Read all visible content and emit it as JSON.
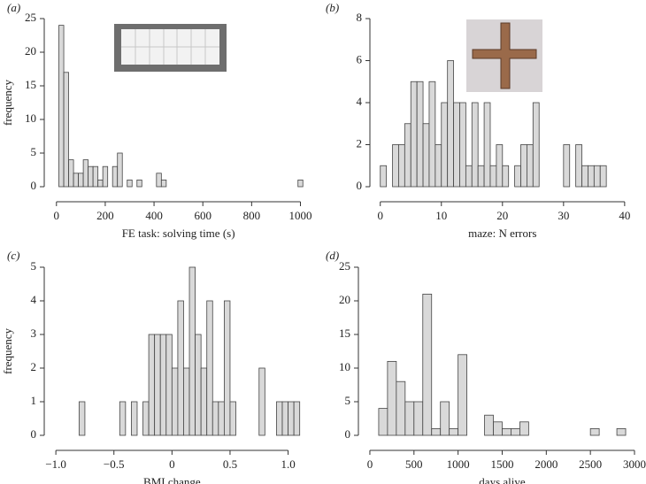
{
  "chart_data": [
    {
      "type": "histogram",
      "panel_label": "(a)",
      "xlabel": "FE task: solving time (s)",
      "ylabel": "frequency",
      "color": "#d9d9d9",
      "bins": [
        10,
        30,
        50,
        70,
        90,
        110,
        130,
        150,
        170,
        190,
        210,
        230,
        250,
        270,
        290,
        310,
        330,
        350,
        370,
        390,
        410,
        430,
        450,
        470,
        490,
        510,
        530,
        550,
        570,
        590,
        610,
        630,
        650,
        670,
        690,
        710,
        730,
        750,
        770,
        790,
        810,
        830,
        850,
        870,
        890,
        910,
        930,
        950,
        970,
        990,
        1010
      ],
      "counts": [
        24,
        17,
        4,
        2,
        2,
        4,
        3,
        3,
        1,
        3,
        0,
        3,
        5,
        0,
        1,
        0,
        1,
        0,
        0,
        0,
        2,
        1,
        0,
        0,
        0,
        0,
        0,
        0,
        0,
        0,
        0,
        0,
        0,
        0,
        0,
        0,
        0,
        0,
        0,
        0,
        0,
        0,
        0,
        0,
        0,
        0,
        0,
        0,
        0,
        1
      ],
      "xlim": [
        -50,
        1020
      ],
      "ylim": [
        0,
        25
      ],
      "xticks": [
        0,
        200,
        400,
        600,
        800,
        1000
      ],
      "yticks": [
        0,
        5,
        10,
        15,
        20,
        25
      ]
    },
    {
      "type": "histogram",
      "panel_label": "(b)",
      "xlabel": "maze: N errors",
      "color": "#d9d9d9",
      "bins": [
        0,
        1,
        2,
        3,
        4,
        5,
        6,
        7,
        8,
        9,
        10,
        11,
        12,
        13,
        14,
        15,
        16,
        17,
        18,
        19,
        20,
        21,
        22,
        23,
        24,
        25,
        26,
        27,
        28,
        29,
        30,
        31,
        32,
        33,
        34,
        35,
        36,
        37
      ],
      "counts": [
        1,
        0,
        2,
        2,
        3,
        5,
        5,
        3,
        5,
        2,
        4,
        6,
        4,
        4,
        1,
        4,
        1,
        4,
        1,
        2,
        1,
        0,
        1,
        2,
        2,
        4,
        0,
        0,
        0,
        0,
        2,
        0,
        2,
        1,
        1,
        1,
        1
      ],
      "xlim": [
        -1.7,
        40.6
      ],
      "ylim": [
        0,
        8
      ],
      "xticks": [
        0,
        10,
        20,
        30,
        40
      ],
      "yticks": [
        0,
        2,
        4,
        6,
        8
      ]
    },
    {
      "type": "histogram",
      "panel_label": "(c)",
      "xlabel": "BMI change",
      "ylabel": "frequency",
      "color": "#d9d9d9",
      "bins": [
        -0.8,
        -0.75,
        -0.7,
        -0.65,
        -0.6,
        -0.55,
        -0.5,
        -0.45,
        -0.4,
        -0.35,
        -0.3,
        -0.25,
        -0.2,
        -0.15,
        -0.1,
        -0.05,
        0,
        0.05,
        0.1,
        0.15,
        0.2,
        0.25,
        0.3,
        0.35,
        0.4,
        0.45,
        0.5,
        0.55,
        0.6,
        0.65,
        0.7,
        0.75,
        0.8,
        0.85,
        0.9,
        0.95,
        1,
        1.05,
        1.1
      ],
      "counts": [
        1,
        0,
        0,
        0,
        0,
        0,
        0,
        1,
        0,
        1,
        0,
        1,
        3,
        3,
        3,
        3,
        2,
        4,
        2,
        5,
        3,
        2,
        4,
        1,
        1,
        4,
        1,
        0,
        0,
        0,
        0,
        2,
        0,
        0,
        1,
        1,
        1,
        1
      ],
      "xlim": [
        -1.1,
        1.11
      ],
      "ylim": [
        0,
        5
      ],
      "xticks": [
        {
          "value": -1,
          "label": "−1.0"
        },
        {
          "value": -0.5,
          "label": "−0.5"
        },
        0,
        0.5,
        {
          "value": 1,
          "label": "1.0"
        }
      ],
      "yticks": [
        0,
        1,
        2,
        3,
        4,
        5
      ]
    },
    {
      "type": "histogram",
      "panel_label": "(d)",
      "xlabel": "days alive",
      "color": "#d9d9d9",
      "bins": [
        100,
        200,
        300,
        400,
        500,
        600,
        700,
        800,
        900,
        1000,
        1100,
        1200,
        1300,
        1400,
        1500,
        1600,
        1700,
        1800,
        1900,
        2000,
        2100,
        2200,
        2300,
        2400,
        2500,
        2600,
        2700,
        2800,
        2900
      ],
      "counts": [
        4,
        11,
        8,
        5,
        5,
        21,
        1,
        5,
        1,
        12,
        0,
        0,
        3,
        2,
        1,
        1,
        2,
        0,
        0,
        0,
        0,
        0,
        0,
        0,
        1,
        0,
        0,
        1
      ],
      "xlim": [
        -130,
        3010
      ],
      "ylim": [
        0,
        25
      ],
      "xticks": [
        0,
        500,
        1000,
        1500,
        2000,
        2500,
        3000
      ],
      "yticks": [
        0,
        5,
        10,
        15,
        20,
        25
      ]
    }
  ]
}
